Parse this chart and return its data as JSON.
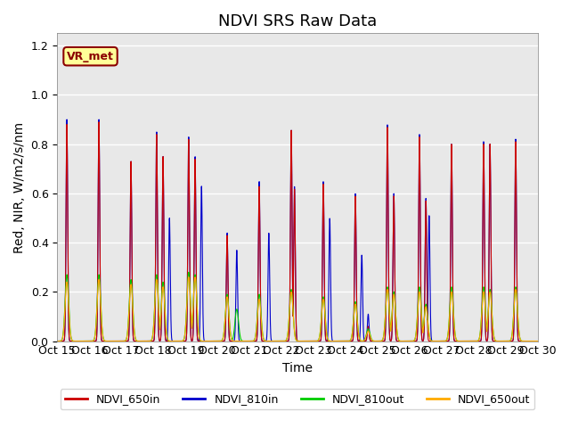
{
  "title": "NDVI SRS Raw Data",
  "xlabel": "Time",
  "ylabel": "Red, NIR, W/m2/s/nm",
  "annotation": "VR_met",
  "ylim": [
    0,
    1.25
  ],
  "xlim": [
    0,
    15
  ],
  "xtick_labels": [
    "Oct 15",
    "Oct 16",
    "Oct 17",
    "Oct 18",
    "Oct 19",
    "Oct 20",
    "Oct 21",
    "Oct 22",
    "Oct 23",
    "Oct 24",
    "Oct 25",
    "Oct 26",
    "Oct 27",
    "Oct 28",
    "Oct 29",
    "Oct 30"
  ],
  "xtick_positions": [
    0,
    1,
    2,
    3,
    4,
    5,
    6,
    7,
    8,
    9,
    10,
    11,
    12,
    13,
    14,
    15
  ],
  "colors": {
    "NDVI_650in": "#cc0000",
    "NDVI_810in": "#0000cc",
    "NDVI_810out": "#00cc00",
    "NDVI_650out": "#ffaa00"
  },
  "background_color": "#e8e8e8",
  "legend_labels": [
    "NDVI_650in",
    "NDVI_810in",
    "NDVI_810out",
    "NDVI_650out"
  ],
  "annotation_box_color": "#ffff99",
  "annotation_text_color": "#8b0000",
  "grid_color": "white",
  "title_fontsize": 13,
  "label_fontsize": 10,
  "tick_fontsize": 9,
  "peaks_810in": [
    [
      0.3,
      0.9
    ],
    [
      1.3,
      0.9
    ],
    [
      2.3,
      0.73
    ],
    [
      3.1,
      0.85
    ],
    [
      3.3,
      0.75
    ],
    [
      3.5,
      0.5
    ],
    [
      4.1,
      0.83
    ],
    [
      4.3,
      0.75
    ],
    [
      4.5,
      0.63
    ],
    [
      5.3,
      0.44
    ],
    [
      5.6,
      0.37
    ],
    [
      6.3,
      0.65
    ],
    [
      6.6,
      0.44
    ],
    [
      7.3,
      0.86
    ],
    [
      7.4,
      0.63
    ],
    [
      8.3,
      0.65
    ],
    [
      8.5,
      0.5
    ],
    [
      9.3,
      0.6
    ],
    [
      9.5,
      0.35
    ],
    [
      9.7,
      0.11
    ],
    [
      10.3,
      0.88
    ],
    [
      10.5,
      0.6
    ],
    [
      11.3,
      0.84
    ],
    [
      11.5,
      0.58
    ],
    [
      11.6,
      0.51
    ],
    [
      12.3,
      0.8
    ],
    [
      13.3,
      0.81
    ],
    [
      13.5,
      0.8
    ],
    [
      14.3,
      0.82
    ]
  ],
  "peaks_650in": [
    [
      0.3,
      0.88
    ],
    [
      1.3,
      0.89
    ],
    [
      2.3,
      0.73
    ],
    [
      3.1,
      0.84
    ],
    [
      3.3,
      0.75
    ],
    [
      4.1,
      0.82
    ],
    [
      4.3,
      0.74
    ],
    [
      5.3,
      0.43
    ],
    [
      6.3,
      0.63
    ],
    [
      7.3,
      0.86
    ],
    [
      7.4,
      0.62
    ],
    [
      8.3,
      0.64
    ],
    [
      9.3,
      0.59
    ],
    [
      9.7,
      0.06
    ],
    [
      10.3,
      0.87
    ],
    [
      10.5,
      0.59
    ],
    [
      11.3,
      0.83
    ],
    [
      11.5,
      0.57
    ],
    [
      12.3,
      0.8
    ],
    [
      13.3,
      0.8
    ],
    [
      13.5,
      0.8
    ],
    [
      14.3,
      0.81
    ]
  ],
  "peaks_810out": [
    [
      0.3,
      0.27
    ],
    [
      1.3,
      0.27
    ],
    [
      2.3,
      0.25
    ],
    [
      3.1,
      0.27
    ],
    [
      3.3,
      0.24
    ],
    [
      4.1,
      0.28
    ],
    [
      4.3,
      0.27
    ],
    [
      5.3,
      0.19
    ],
    [
      5.6,
      0.13
    ],
    [
      6.3,
      0.19
    ],
    [
      7.3,
      0.21
    ],
    [
      8.3,
      0.18
    ],
    [
      9.3,
      0.16
    ],
    [
      9.7,
      0.05
    ],
    [
      10.3,
      0.22
    ],
    [
      10.5,
      0.2
    ],
    [
      11.3,
      0.22
    ],
    [
      11.5,
      0.15
    ],
    [
      12.3,
      0.22
    ],
    [
      13.3,
      0.22
    ],
    [
      13.5,
      0.21
    ],
    [
      14.3,
      0.22
    ]
  ],
  "peaks_650out": [
    [
      0.3,
      0.24
    ],
    [
      1.3,
      0.25
    ],
    [
      2.3,
      0.23
    ],
    [
      3.1,
      0.25
    ],
    [
      3.3,
      0.22
    ],
    [
      4.1,
      0.26
    ],
    [
      4.3,
      0.26
    ],
    [
      5.3,
      0.18
    ],
    [
      6.3,
      0.17
    ],
    [
      7.3,
      0.2
    ],
    [
      8.3,
      0.17
    ],
    [
      9.3,
      0.15
    ],
    [
      9.7,
      0.04
    ],
    [
      10.3,
      0.21
    ],
    [
      10.5,
      0.19
    ],
    [
      11.3,
      0.2
    ],
    [
      11.5,
      0.14
    ],
    [
      12.3,
      0.2
    ],
    [
      13.3,
      0.2
    ],
    [
      13.5,
      0.2
    ],
    [
      14.3,
      0.21
    ]
  ]
}
